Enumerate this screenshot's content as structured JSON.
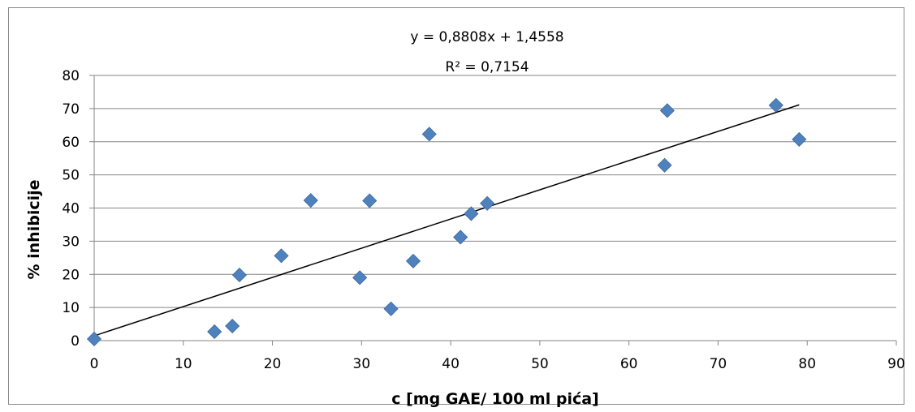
{
  "chart_data": {
    "type": "scatter",
    "title": "",
    "xlabel": "c [mg GAE/ 100 ml pića]",
    "ylabel": "% inhibicije",
    "xlim": [
      0,
      90
    ],
    "ylim": [
      0,
      80
    ],
    "xticks": [
      0,
      10,
      20,
      30,
      40,
      50,
      60,
      70,
      80,
      90
    ],
    "yticks": [
      0,
      10,
      20,
      30,
      40,
      50,
      60,
      70,
      80
    ],
    "grid": "horizontal",
    "legend": "none",
    "marker_color": "#4f81bd",
    "series": [
      {
        "points": [
          {
            "x": 0,
            "y": 0.5
          },
          {
            "x": 13.5,
            "y": 2.7
          },
          {
            "x": 15.5,
            "y": 4.4
          },
          {
            "x": 16.3,
            "y": 19.8
          },
          {
            "x": 21.0,
            "y": 25.6
          },
          {
            "x": 24.3,
            "y": 42.3
          },
          {
            "x": 29.8,
            "y": 19.0
          },
          {
            "x": 30.9,
            "y": 42.2
          },
          {
            "x": 33.3,
            "y": 9.6
          },
          {
            "x": 35.8,
            "y": 24.0
          },
          {
            "x": 37.6,
            "y": 62.3
          },
          {
            "x": 41.1,
            "y": 31.2
          },
          {
            "x": 42.3,
            "y": 38.3
          },
          {
            "x": 44.1,
            "y": 41.4
          },
          {
            "x": 64.0,
            "y": 52.9
          },
          {
            "x": 64.3,
            "y": 69.4
          },
          {
            "x": 76.5,
            "y": 71.0
          },
          {
            "x": 79.1,
            "y": 60.7
          }
        ]
      }
    ],
    "trendline": {
      "slope": 0.8808,
      "intercept": 1.4558,
      "x_range": [
        0,
        79.1
      ],
      "equation": "y = 0,8808x + 1,4558",
      "r2": "R² = 0,7154"
    }
  }
}
